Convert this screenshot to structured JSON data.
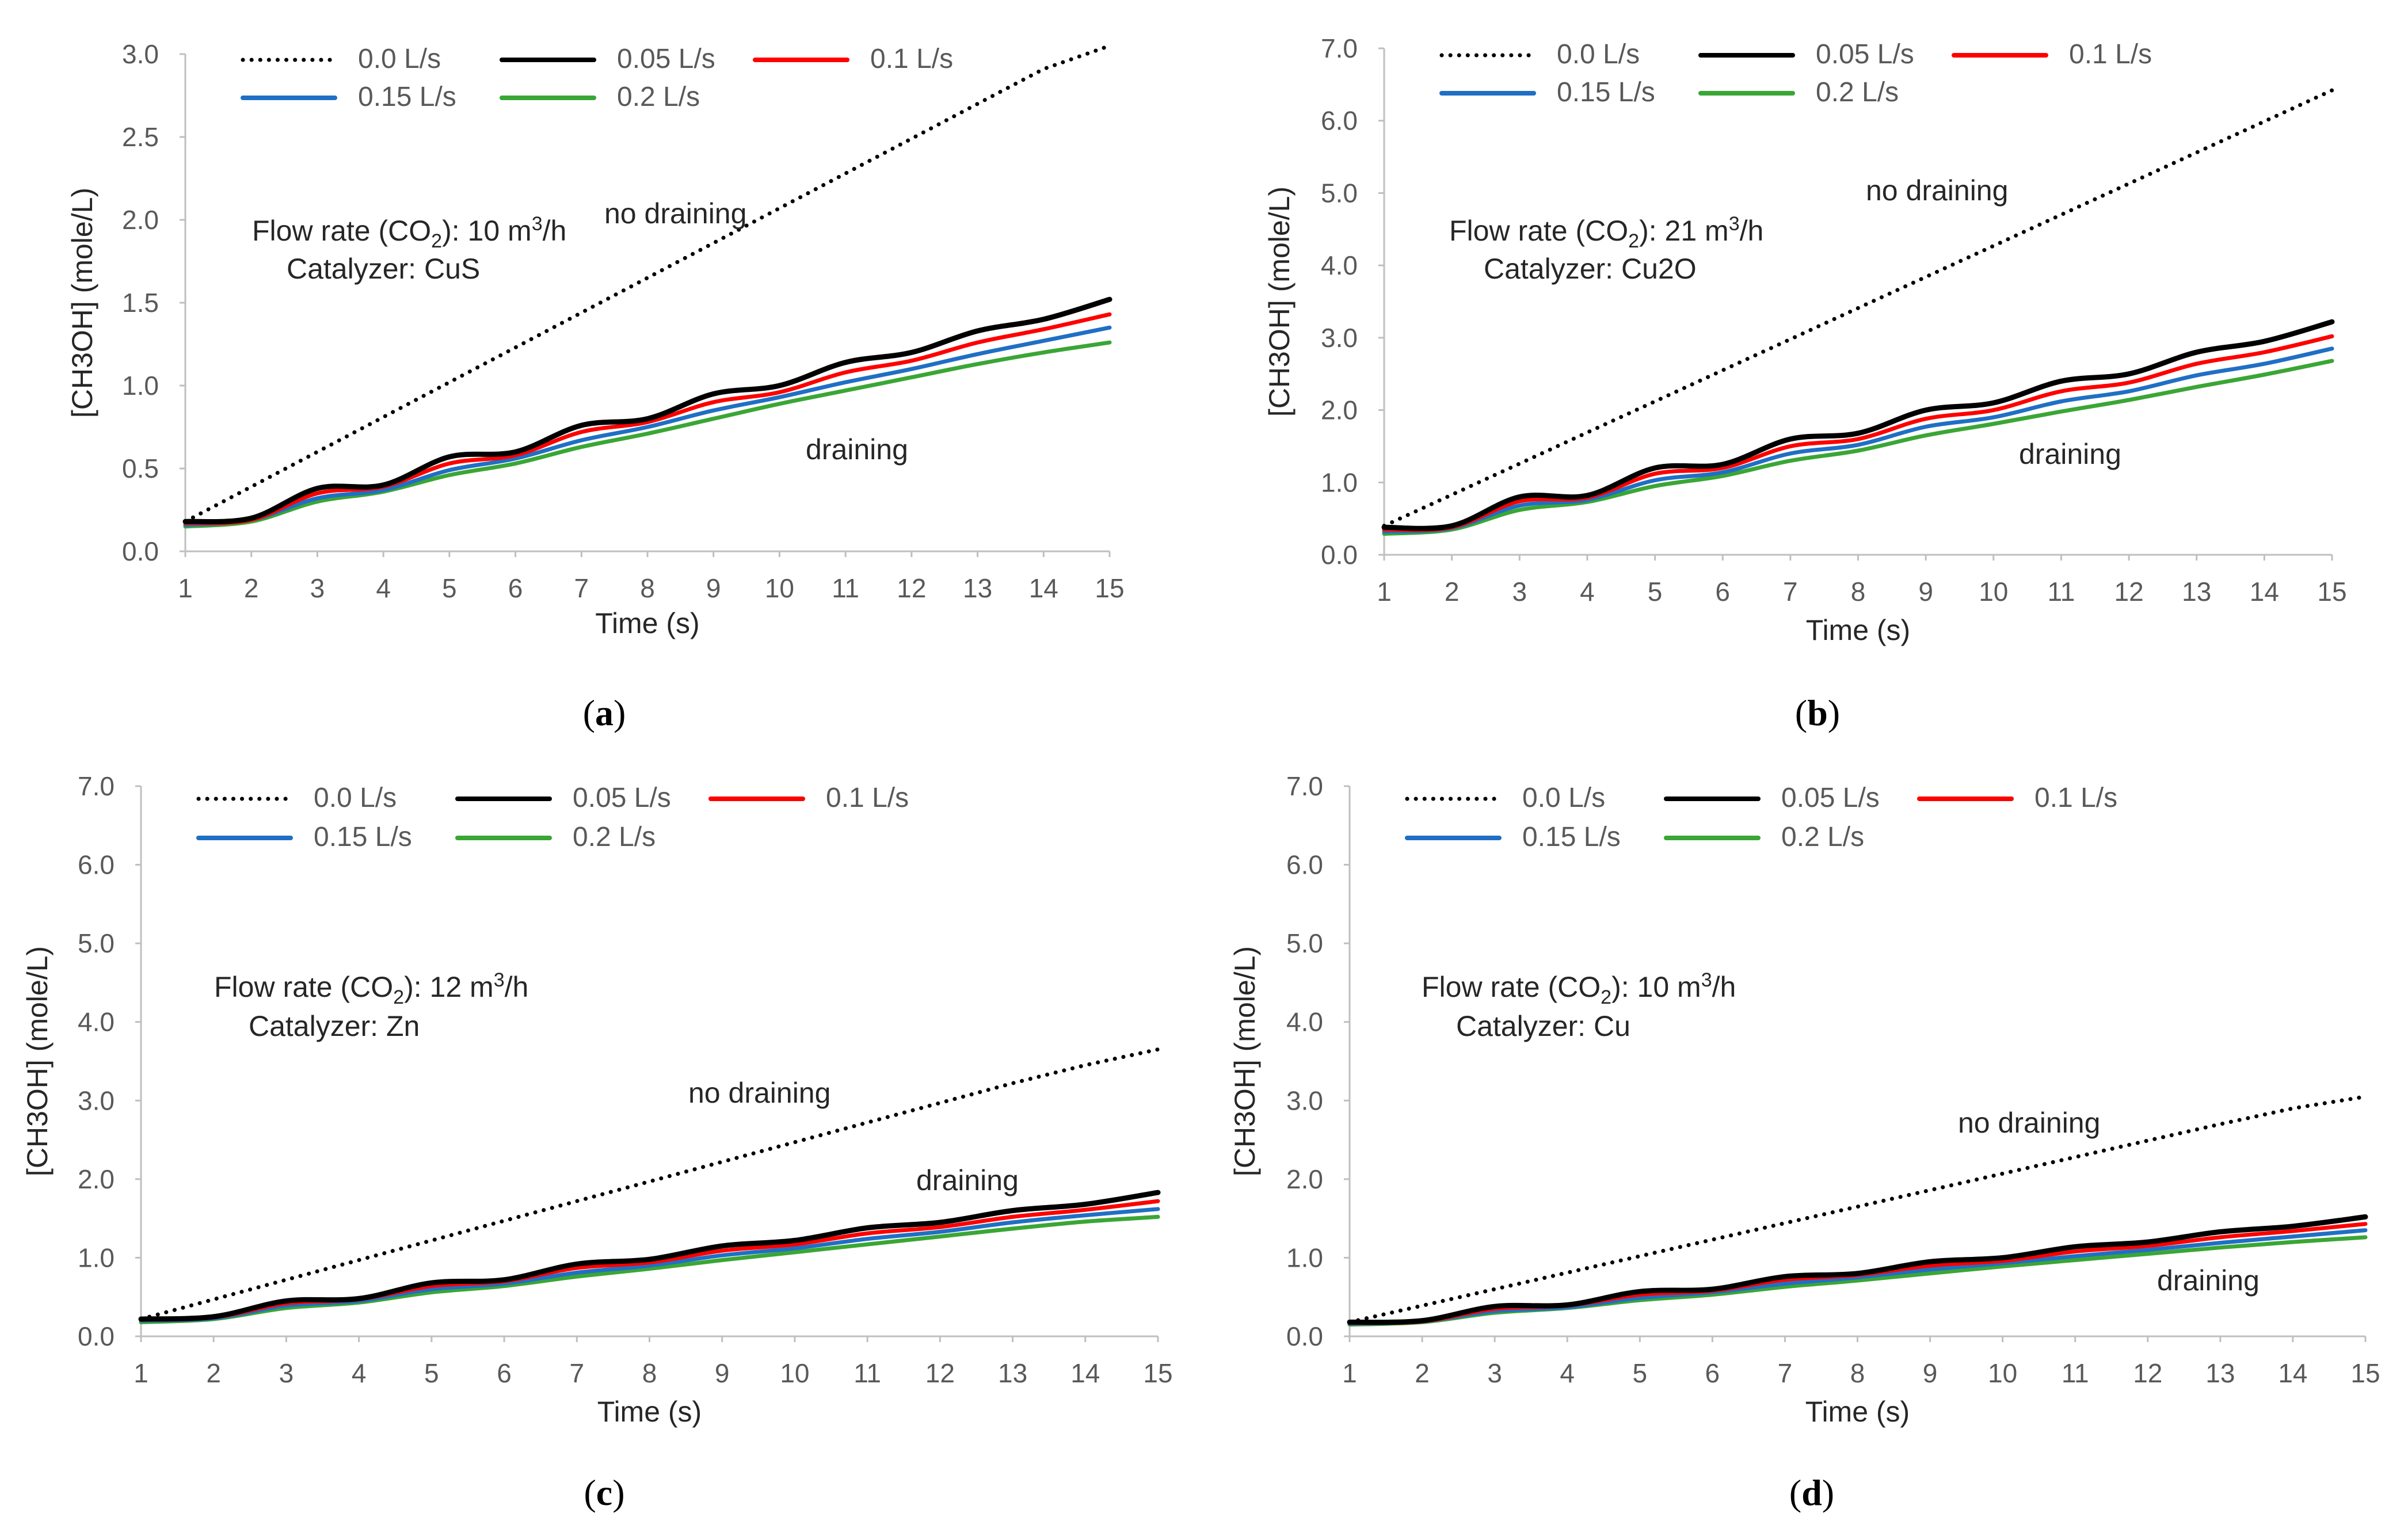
{
  "palette": {
    "series_colors": [
      "#000000",
      "#000000",
      "#ff0000",
      "#1f6fc5",
      "#3aa635"
    ],
    "axis": "#bfbfbf"
  },
  "chart_data": [
    {
      "type": "line",
      "caption": "a",
      "xlabel": "Time (s)",
      "ylabel": "[CH3OH] (mole/L)",
      "x": [
        1,
        2,
        3,
        4,
        5,
        6,
        7,
        8,
        9,
        10,
        11,
        12,
        13,
        14,
        15
      ],
      "xlim": [
        1,
        15
      ],
      "ylim": [
        0,
        3.0
      ],
      "yticks": [
        "0.0",
        "0.5",
        "1.0",
        "1.5",
        "2.0",
        "2.5",
        "3.0"
      ],
      "annotation_lines": [
        "Flow rate (CO",
        "2",
        "): 10 m",
        "3",
        "/h"
      ],
      "catalyzer": "Catalyzer: CuS",
      "label_no_draining": "no draining",
      "label_draining": "draining",
      "series": [
        {
          "name": "0.0 L/s",
          "dotted": true,
          "values": [
            0.18,
            0.39,
            0.6,
            0.81,
            1.02,
            1.23,
            1.44,
            1.65,
            1.86,
            2.07,
            2.28,
            2.49,
            2.7,
            2.91,
            3.05
          ]
        },
        {
          "name": "0.05 L/s",
          "values": [
            0.18,
            0.2,
            0.38,
            0.4,
            0.57,
            0.6,
            0.76,
            0.8,
            0.95,
            1.0,
            1.14,
            1.2,
            1.33,
            1.4,
            1.52
          ]
        },
        {
          "name": "0.1 L/s",
          "values": [
            0.17,
            0.19,
            0.35,
            0.39,
            0.53,
            0.58,
            0.72,
            0.78,
            0.9,
            0.96,
            1.08,
            1.15,
            1.26,
            1.34,
            1.43
          ]
        },
        {
          "name": "0.15 L/s",
          "values": [
            0.16,
            0.19,
            0.32,
            0.37,
            0.49,
            0.56,
            0.67,
            0.75,
            0.85,
            0.93,
            1.02,
            1.1,
            1.19,
            1.27,
            1.35
          ]
        },
        {
          "name": "0.2 L/s",
          "values": [
            0.15,
            0.18,
            0.3,
            0.36,
            0.46,
            0.53,
            0.63,
            0.71,
            0.8,
            0.89,
            0.97,
            1.05,
            1.13,
            1.2,
            1.26
          ]
        }
      ]
    },
    {
      "type": "line",
      "caption": "b",
      "xlabel": "Time (s)",
      "ylabel": "[CH3OH] (mole/L)",
      "x": [
        1,
        2,
        3,
        4,
        5,
        6,
        7,
        8,
        9,
        10,
        11,
        12,
        13,
        14,
        15
      ],
      "xlim": [
        1,
        15
      ],
      "ylim": [
        0,
        7.0
      ],
      "yticks": [
        "0.0",
        "1.0",
        "2.0",
        "3.0",
        "4.0",
        "5.0",
        "6.0",
        "7.0"
      ],
      "annotation_lines": [
        "Flow rate  (CO",
        "2",
        "): 21 m",
        "3",
        "/h"
      ],
      "catalyzer": "Catalyzer: Cu2O",
      "label_no_draining": "no draining",
      "label_draining": "draining",
      "series": [
        {
          "name": "0.0 L/s",
          "dotted": true,
          "values": [
            0.4,
            0.83,
            1.26,
            1.69,
            2.12,
            2.55,
            2.98,
            3.41,
            3.84,
            4.27,
            4.7,
            5.13,
            5.56,
            5.99,
            6.42
          ]
        },
        {
          "name": "0.05 L/s",
          "values": [
            0.38,
            0.4,
            0.8,
            0.82,
            1.2,
            1.25,
            1.6,
            1.68,
            2.0,
            2.1,
            2.4,
            2.5,
            2.8,
            2.95,
            3.22
          ]
        },
        {
          "name": "0.1 L/s",
          "values": [
            0.35,
            0.38,
            0.74,
            0.79,
            1.12,
            1.2,
            1.5,
            1.6,
            1.88,
            2.0,
            2.26,
            2.38,
            2.64,
            2.8,
            3.02
          ]
        },
        {
          "name": "0.15 L/s",
          "values": [
            0.32,
            0.37,
            0.68,
            0.76,
            1.03,
            1.14,
            1.4,
            1.52,
            1.77,
            1.9,
            2.12,
            2.26,
            2.48,
            2.64,
            2.85
          ]
        },
        {
          "name": "0.2 L/s",
          "values": [
            0.29,
            0.35,
            0.62,
            0.73,
            0.95,
            1.09,
            1.3,
            1.44,
            1.65,
            1.81,
            1.98,
            2.14,
            2.32,
            2.49,
            2.68
          ]
        }
      ]
    },
    {
      "type": "line",
      "caption": "c",
      "xlabel": "Time (s)",
      "ylabel": "[CH3OH] (mole/L)",
      "x": [
        1,
        2,
        3,
        4,
        5,
        6,
        7,
        8,
        9,
        10,
        11,
        12,
        13,
        14,
        15
      ],
      "xlim": [
        1,
        15
      ],
      "ylim": [
        0,
        7.0
      ],
      "yticks": [
        "0.0",
        "1.0",
        "2.0",
        "3.0",
        "4.0",
        "5.0",
        "6.0",
        "7.0"
      ],
      "annotation_lines": [
        "Flow rate  (CO",
        "2",
        "): 12 m",
        "3",
        "/h"
      ],
      "catalyzer": "Catalyzer: Zn",
      "label_no_draining": "no draining",
      "label_draining": "draining",
      "series": [
        {
          "name": "0.0 L/s",
          "dotted": true,
          "values": [
            0.22,
            0.47,
            0.72,
            0.97,
            1.22,
            1.47,
            1.72,
            1.97,
            2.22,
            2.47,
            2.72,
            2.97,
            3.22,
            3.45,
            3.65
          ]
        },
        {
          "name": "0.05 L/s",
          "values": [
            0.22,
            0.25,
            0.45,
            0.48,
            0.68,
            0.72,
            0.92,
            0.98,
            1.15,
            1.22,
            1.38,
            1.45,
            1.6,
            1.68,
            1.83
          ]
        },
        {
          "name": "0.1 L/s",
          "values": [
            0.21,
            0.24,
            0.42,
            0.47,
            0.64,
            0.7,
            0.87,
            0.94,
            1.09,
            1.17,
            1.31,
            1.39,
            1.52,
            1.61,
            1.72
          ]
        },
        {
          "name": "0.15 L/s",
          "values": [
            0.2,
            0.23,
            0.39,
            0.45,
            0.6,
            0.67,
            0.81,
            0.9,
            1.03,
            1.12,
            1.24,
            1.33,
            1.45,
            1.54,
            1.62
          ]
        },
        {
          "name": "0.2 L/s",
          "values": [
            0.18,
            0.22,
            0.36,
            0.43,
            0.56,
            0.64,
            0.76,
            0.86,
            0.97,
            1.07,
            1.17,
            1.27,
            1.37,
            1.46,
            1.52
          ]
        }
      ]
    },
    {
      "type": "line",
      "caption": "d",
      "xlabel": "Time (s)",
      "ylabel": "[CH3OH] (mole/L)",
      "x": [
        1,
        2,
        3,
        4,
        5,
        6,
        7,
        8,
        9,
        10,
        11,
        12,
        13,
        14,
        15
      ],
      "xlim": [
        1,
        15
      ],
      "ylim": [
        0,
        7.0
      ],
      "yticks": [
        "0.0",
        "1.0",
        "2.0",
        "3.0",
        "4.0",
        "5.0",
        "6.0",
        "7.0"
      ],
      "annotation_lines": [
        "Flow rate  (CO",
        "2",
        "): 10 m",
        "3",
        "/h"
      ],
      "catalyzer": "Catalyzer: Cu",
      "label_no_draining": "no draining",
      "label_draining": "draining",
      "series": [
        {
          "name": "0.0 L/s",
          "dotted": true,
          "values": [
            0.18,
            0.39,
            0.6,
            0.81,
            1.02,
            1.23,
            1.44,
            1.65,
            1.86,
            2.07,
            2.28,
            2.49,
            2.7,
            2.9,
            3.05
          ]
        },
        {
          "name": "0.05 L/s",
          "values": [
            0.18,
            0.2,
            0.38,
            0.4,
            0.57,
            0.6,
            0.76,
            0.8,
            0.95,
            1.0,
            1.14,
            1.2,
            1.33,
            1.4,
            1.52
          ]
        },
        {
          "name": "0.1 L/s",
          "values": [
            0.17,
            0.19,
            0.35,
            0.39,
            0.53,
            0.58,
            0.72,
            0.78,
            0.9,
            0.96,
            1.08,
            1.15,
            1.26,
            1.34,
            1.43
          ]
        },
        {
          "name": "0.15 L/s",
          "values": [
            0.16,
            0.19,
            0.32,
            0.37,
            0.49,
            0.56,
            0.67,
            0.75,
            0.85,
            0.93,
            1.02,
            1.1,
            1.19,
            1.27,
            1.35
          ]
        },
        {
          "name": "0.2 L/s",
          "values": [
            0.15,
            0.18,
            0.3,
            0.36,
            0.46,
            0.53,
            0.63,
            0.71,
            0.8,
            0.89,
            0.97,
            1.05,
            1.13,
            1.2,
            1.26
          ]
        }
      ]
    }
  ]
}
